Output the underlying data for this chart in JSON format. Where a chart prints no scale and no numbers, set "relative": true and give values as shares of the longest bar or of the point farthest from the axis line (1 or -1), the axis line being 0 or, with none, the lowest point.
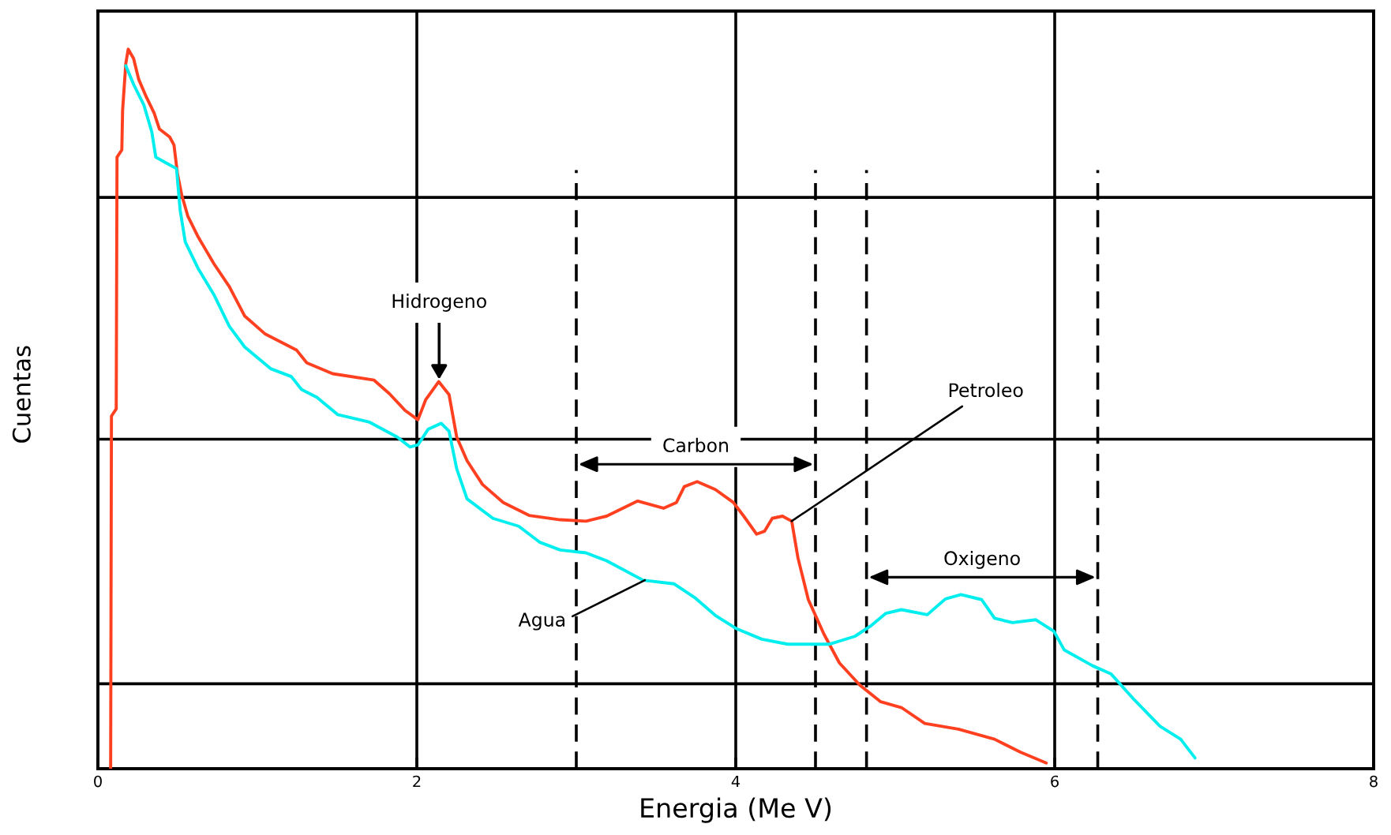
{
  "chart_data": {
    "type": "line",
    "xlabel": "Energia (Me V)",
    "ylabel": "Cuentas",
    "relative": true,
    "xlim": [
      0,
      8
    ],
    "xticks": [
      0,
      2,
      4,
      6,
      8
    ],
    "grid": "x",
    "series": [
      {
        "color": "#ff4020",
        "x": [
          0.08,
          0.085,
          0.115,
          0.12,
          0.15,
          0.155,
          0.175,
          0.19,
          0.224,
          0.256,
          0.305,
          0.353,
          0.386,
          0.45,
          0.477,
          0.499,
          0.525,
          0.564,
          0.629,
          0.727,
          0.824,
          0.921,
          1.05,
          1.245,
          1.31,
          1.472,
          1.732,
          1.829,
          1.926,
          2.007,
          2.056,
          2.137,
          2.202,
          2.25,
          2.315,
          2.412,
          2.542,
          2.704,
          2.899,
          3.061,
          3.19,
          3.385,
          3.547,
          3.628,
          3.677,
          3.758,
          3.872,
          3.985,
          4.05,
          4.131,
          4.18,
          4.229,
          4.293,
          4.351,
          4.39,
          4.455,
          4.553,
          4.65,
          4.779,
          4.909,
          5.039,
          5.185,
          5.396,
          5.623,
          5.785,
          5.947
        ],
        "values": [
          0,
          0.49,
          0.5,
          0.85,
          0.86,
          0.915,
          0.98,
          1.0,
          0.987,
          0.958,
          0.933,
          0.911,
          0.889,
          0.878,
          0.867,
          0.827,
          0.798,
          0.768,
          0.739,
          0.702,
          0.67,
          0.629,
          0.604,
          0.582,
          0.564,
          0.549,
          0.54,
          0.521,
          0.498,
          0.485,
          0.513,
          0.538,
          0.52,
          0.461,
          0.428,
          0.395,
          0.37,
          0.352,
          0.346,
          0.344,
          0.351,
          0.372,
          0.362,
          0.37,
          0.392,
          0.399,
          0.388,
          0.37,
          0.351,
          0.326,
          0.33,
          0.348,
          0.351,
          0.344,
          0.293,
          0.235,
          0.187,
          0.147,
          0.116,
          0.093,
          0.085,
          0.063,
          0.055,
          0.041,
          0.023,
          0.008
        ]
      },
      {
        "color": "#00eeee",
        "x": [
          0.175,
          0.224,
          0.289,
          0.338,
          0.363,
          0.435,
          0.493,
          0.516,
          0.548,
          0.629,
          0.727,
          0.824,
          0.921,
          1.083,
          1.213,
          1.277,
          1.374,
          1.505,
          1.699,
          1.877,
          1.958,
          2.007,
          2.072,
          2.153,
          2.202,
          2.25,
          2.315,
          2.477,
          2.639,
          2.769,
          2.899,
          3.061,
          3.19,
          3.418,
          3.612,
          3.742,
          3.872,
          4.001,
          4.163,
          4.326,
          4.585,
          4.747,
          4.844,
          4.942,
          5.039,
          5.201,
          5.315,
          5.412,
          5.542,
          5.623,
          5.736,
          5.882,
          5.995,
          6.06,
          6.238,
          6.352,
          6.498,
          6.66,
          6.79,
          6.88
        ],
        "values": [
          0.977,
          0.951,
          0.922,
          0.885,
          0.85,
          0.841,
          0.834,
          0.776,
          0.732,
          0.695,
          0.659,
          0.615,
          0.586,
          0.556,
          0.545,
          0.527,
          0.516,
          0.492,
          0.482,
          0.461,
          0.447,
          0.45,
          0.472,
          0.48,
          0.469,
          0.417,
          0.375,
          0.348,
          0.337,
          0.315,
          0.304,
          0.3,
          0.289,
          0.262,
          0.257,
          0.238,
          0.213,
          0.195,
          0.18,
          0.173,
          0.173,
          0.184,
          0.198,
          0.216,
          0.221,
          0.214,
          0.236,
          0.242,
          0.235,
          0.209,
          0.203,
          0.207,
          0.191,
          0.165,
          0.143,
          0.132,
          0.096,
          0.059,
          0.041,
          0.015
        ]
      }
    ],
    "ref_lines": [
      {
        "axis": "y",
        "value": 0.118,
        "color": "#000000",
        "line_style": "solid"
      },
      {
        "axis": "y",
        "value": 0.458,
        "color": "#000000",
        "line_style": "solid"
      },
      {
        "axis": "y",
        "value": 0.794,
        "color": "#000000",
        "line_style": "solid"
      },
      {
        "axis": "x",
        "value": 3,
        "color": "#000000",
        "line_style": "dashed"
      },
      {
        "axis": "x",
        "value": 4.5,
        "color": "#000000",
        "line_style": "dashed"
      },
      {
        "axis": "x",
        "value": 4.82,
        "color": "#000000",
        "line_style": "dashed"
      },
      {
        "axis": "x",
        "value": 6.27,
        "color": "#000000",
        "line_style": "dashed"
      }
    ],
    "annotations": [
      {
        "text": "Hidrogeno",
        "x": 2.14,
        "y": 0.538
      },
      "Carbon",
      {
        "text": "Petroleo",
        "x": 4.35,
        "y": 0.344
      },
      {
        "text": "Agua",
        "x": 3.43,
        "y": 0.262
      },
      "Oxigeno"
    ]
  }
}
